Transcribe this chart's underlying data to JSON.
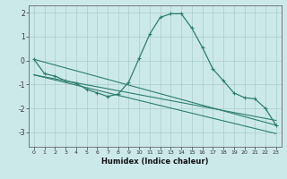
{
  "title": "",
  "xlabel": "Humidex (Indice chaleur)",
  "ylabel": "",
  "background_color": "#cce9e9",
  "grid_color": "#aacccc",
  "line_color": "#2e7d6e",
  "marker_color": "#2e7d6e",
  "xlim": [
    -0.5,
    23.5
  ],
  "ylim": [
    -3.6,
    2.3
  ],
  "yticks": [
    2,
    1,
    0,
    -1,
    -2,
    -3
  ],
  "xticks": [
    0,
    1,
    2,
    3,
    4,
    5,
    6,
    7,
    8,
    9,
    10,
    11,
    12,
    13,
    14,
    15,
    16,
    17,
    18,
    19,
    20,
    21,
    22,
    23
  ],
  "series": [
    {
      "x": [
        0,
        1,
        2,
        3,
        4,
        5,
        6,
        7,
        8,
        9,
        10,
        11,
        12,
        13,
        14,
        15,
        16,
        17,
        18,
        19,
        20,
        21,
        22,
        23
      ],
      "y": [
        0.05,
        -0.55,
        -0.65,
        -0.85,
        -0.95,
        -1.2,
        -1.35,
        -1.5,
        -1.4,
        -0.9,
        0.1,
        1.1,
        1.8,
        1.95,
        1.95,
        1.35,
        0.55,
        -0.35,
        -0.85,
        -1.35,
        -1.55,
        -1.6,
        -2.0,
        -2.7
      ]
    },
    {
      "x": [
        0,
        23
      ],
      "y": [
        0.05,
        -2.7
      ]
    },
    {
      "x": [
        0,
        23
      ],
      "y": [
        -0.6,
        -3.05
      ]
    },
    {
      "x": [
        0,
        23
      ],
      "y": [
        -0.6,
        -2.5
      ]
    }
  ]
}
